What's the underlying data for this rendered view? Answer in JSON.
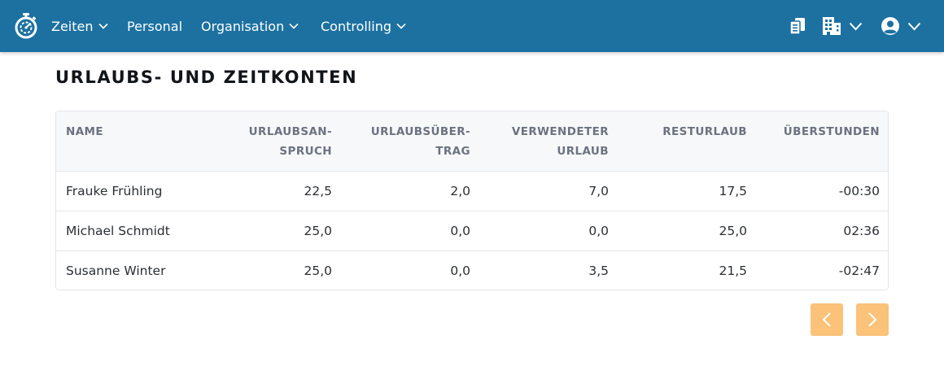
{
  "nav": {
    "items": [
      {
        "label": "Zeiten",
        "has_dropdown": true
      },
      {
        "label": "Personal",
        "has_dropdown": false
      },
      {
        "label": "Organisation",
        "has_dropdown": true
      },
      {
        "label": "Controlling",
        "has_dropdown": true
      }
    ],
    "right_icons": [
      "documents-icon",
      "building-icon",
      "user-account-icon"
    ]
  },
  "page": {
    "title": "URLAUBS- UND ZEITKONTEN"
  },
  "table": {
    "headers": [
      {
        "line1": "NAME",
        "line2": ""
      },
      {
        "line1": "URLAUBSAN-",
        "line2": "SPRUCH"
      },
      {
        "line1": "URLAUBSÜBER-",
        "line2": "TRAG"
      },
      {
        "line1": "VERWENDETER",
        "line2": "URLAUB"
      },
      {
        "line1": "RESTURLAUB",
        "line2": ""
      },
      {
        "line1": "ÜBERSTUNDEN",
        "line2": ""
      }
    ],
    "rows": [
      [
        "Frauke Frühling",
        "22,5",
        "2,0",
        "7,0",
        "17,5",
        "-00:30"
      ],
      [
        "Michael Schmidt",
        "25,0",
        "0,0",
        "0,0",
        "25,0",
        "02:36"
      ],
      [
        "Susanne Winter",
        "25,0",
        "0,0",
        "3,5",
        "21,5",
        "-02:47"
      ]
    ]
  },
  "colors": {
    "topbar": "#1c71a1",
    "pager": "#fbc27a"
  }
}
